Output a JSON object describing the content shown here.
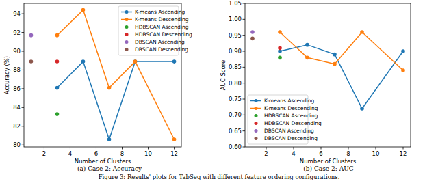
{
  "chart_data": [
    {
      "type": "line",
      "x_label": "Number of Clusters",
      "y_label": "Accuracy (%)",
      "caption": "(a) Case 2: Accuracy",
      "xlim": [
        0.45,
        12.55
      ],
      "xticks": [
        2,
        4,
        6,
        8,
        10,
        12
      ],
      "ylim": [
        79.8,
        95.1
      ],
      "yticks": [
        80,
        82,
        84,
        86,
        88,
        90,
        92,
        94
      ],
      "legend": "upper right",
      "series": [
        {
          "name": "K-means Ascending",
          "type": "line",
          "marker": "circle",
          "color": "#1f77b4",
          "x": [
            3,
            5,
            7,
            9,
            12
          ],
          "values": [
            86.1,
            88.9,
            80.6,
            88.9,
            88.9
          ]
        },
        {
          "name": "K-means Descending",
          "type": "line",
          "marker": "circle",
          "color": "#ff7f0e",
          "x": [
            3,
            5,
            7,
            9,
            12
          ],
          "values": [
            91.7,
            94.4,
            86.1,
            88.9,
            80.6
          ]
        },
        {
          "name": "HDBSCAN Ascending",
          "type": "scatter",
          "marker": "circle",
          "color": "#2ca02c",
          "x": [
            3
          ],
          "values": [
            83.3
          ]
        },
        {
          "name": "HDBSCAN Descending",
          "type": "scatter",
          "marker": "circle",
          "color": "#d62728",
          "x": [
            3
          ],
          "values": [
            88.9
          ]
        },
        {
          "name": "DBSCAN Ascending",
          "type": "scatter",
          "marker": "circle",
          "color": "#9467bd",
          "x": [
            1
          ],
          "values": [
            91.7
          ]
        },
        {
          "name": "DBSCAN Descending",
          "type": "scatter",
          "marker": "circle",
          "color": "#8c564b",
          "x": [
            1
          ],
          "values": [
            88.9
          ]
        }
      ]
    },
    {
      "type": "line",
      "x_label": "Number of Clusters",
      "y_label": "AUC Score",
      "caption": "(b) Case 2: AUC",
      "xlim": [
        0.45,
        12.55
      ],
      "xticks": [
        2,
        4,
        6,
        8,
        10,
        12
      ],
      "ylim": [
        0.6,
        1.05
      ],
      "yticks": [
        {
          "value": 0.6,
          "label": "0.60"
        },
        0.65,
        {
          "value": 0.7,
          "label": "0.70"
        },
        0.75,
        {
          "value": 0.8,
          "label": "0.80"
        },
        0.85,
        {
          "value": 0.9,
          "label": "0.90"
        },
        0.95,
        {
          "value": 1.0,
          "label": "1.00"
        },
        1.05
      ],
      "legend": "lower left",
      "series": [
        {
          "name": "K-means Ascending",
          "type": "line",
          "marker": "circle",
          "color": "#1f77b4",
          "x": [
            3,
            5,
            7,
            9,
            12
          ],
          "values": [
            0.9,
            0.92,
            0.89,
            0.72,
            0.9
          ]
        },
        {
          "name": "K-means Descending",
          "type": "line",
          "marker": "circle",
          "color": "#ff7f0e",
          "x": [
            3,
            5,
            7,
            9,
            12
          ],
          "values": [
            0.96,
            0.88,
            0.86,
            0.96,
            0.84
          ]
        },
        {
          "name": "HDBSCAN Ascending",
          "type": "scatter",
          "marker": "circle",
          "color": "#2ca02c",
          "x": [
            3
          ],
          "values": [
            0.88
          ]
        },
        {
          "name": "HDBSCAN Descending",
          "type": "scatter",
          "marker": "circle",
          "color": "#d62728",
          "x": [
            3
          ],
          "values": [
            0.91
          ]
        },
        {
          "name": "DBSCAN Ascending",
          "type": "scatter",
          "marker": "circle",
          "color": "#9467bd",
          "x": [
            1
          ],
          "values": [
            0.96
          ]
        },
        {
          "name": "DBSCAN Descending",
          "type": "scatter",
          "marker": "circle",
          "color": "#8c564b",
          "x": [
            1
          ],
          "values": [
            0.94
          ]
        }
      ]
    }
  ],
  "figure_caption": "Figure 3: Results' plots for TabSeq with different feature ordering configurations."
}
